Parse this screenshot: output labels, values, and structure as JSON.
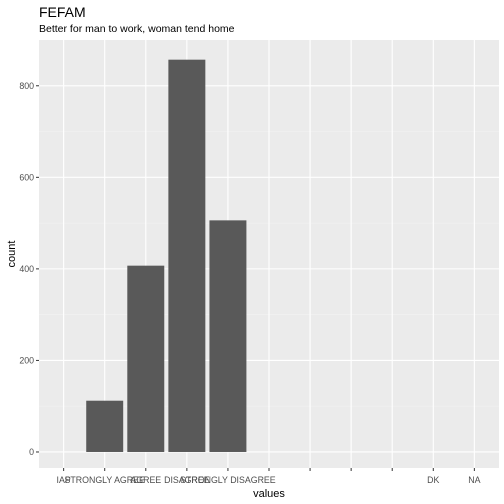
{
  "chart_data": {
    "type": "bar",
    "title": "FEFAM",
    "subtitle": "Better for man to work, woman tend home",
    "xlabel": "values",
    "ylabel": "count",
    "categories": [
      "IAP",
      "STRONGLY AGREE",
      "AGREE",
      "DISAGREE",
      "STRONGLY DISAGREE",
      "",
      "",
      "",
      "",
      "DK",
      "NA"
    ],
    "values": [
      0,
      112,
      407,
      857,
      506,
      0,
      0,
      0,
      0,
      0,
      0
    ],
    "yticks": [
      0,
      200,
      400,
      600,
      800
    ],
    "ylim": [
      -35,
      900
    ],
    "grid": true,
    "colors": {
      "bar": "#595959",
      "panel": "#ebebeb",
      "grid_major": "#ffffff",
      "grid_minor": "#f2f2f2"
    }
  }
}
